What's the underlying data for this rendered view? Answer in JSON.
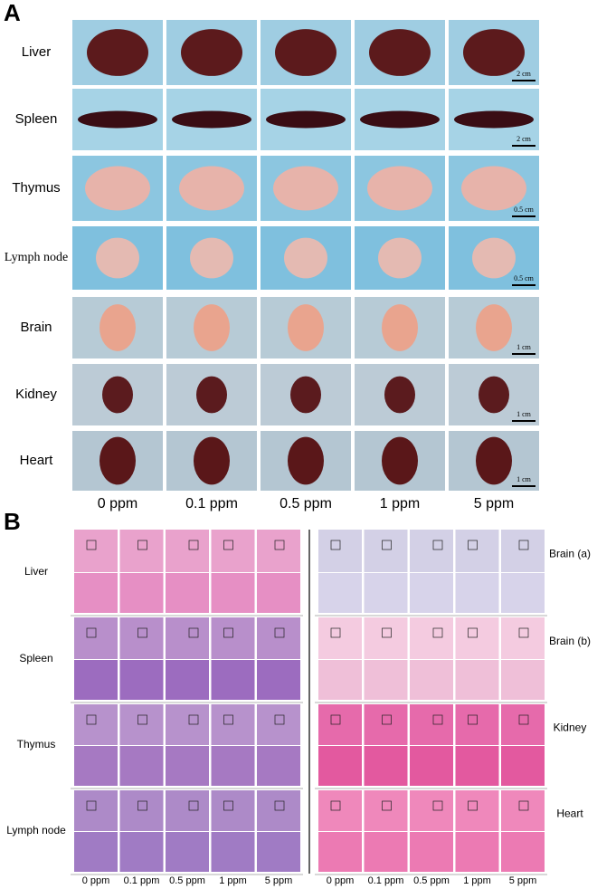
{
  "panel_a": {
    "label": "A",
    "rows": [
      {
        "organ": "Liver",
        "scale_bar": "2 cm"
      },
      {
        "organ": "Spleen",
        "scale_bar": "2 cm"
      },
      {
        "organ": "Thymus",
        "scale_bar": "0.5 cm"
      },
      {
        "organ": "Lymph node",
        "scale_bar": "0.5 cm"
      },
      {
        "organ": "Brain",
        "scale_bar": "1 cm"
      },
      {
        "organ": "Kidney",
        "scale_bar": "1 cm"
      },
      {
        "organ": "Heart",
        "scale_bar": "1 cm"
      }
    ],
    "columns": [
      "0 ppm",
      "0.1 ppm",
      "0.5 ppm",
      "1 ppm",
      "5 ppm"
    ]
  },
  "panel_b": {
    "label": "B",
    "left": {
      "organs": [
        "Liver",
        "Spleen",
        "Thymus",
        "Lymph node"
      ],
      "columns": [
        "0 ppm",
        "0.1 ppm",
        "0.5 ppm",
        "1 ppm",
        "5 ppm"
      ]
    },
    "right": {
      "organs": [
        "Brain (a)",
        "Brain (b)",
        "Kidney",
        "Heart"
      ],
      "columns": [
        "0 ppm",
        "0.1 ppm",
        "0.5 ppm",
        "1 ppm",
        "5 ppm"
      ]
    }
  }
}
